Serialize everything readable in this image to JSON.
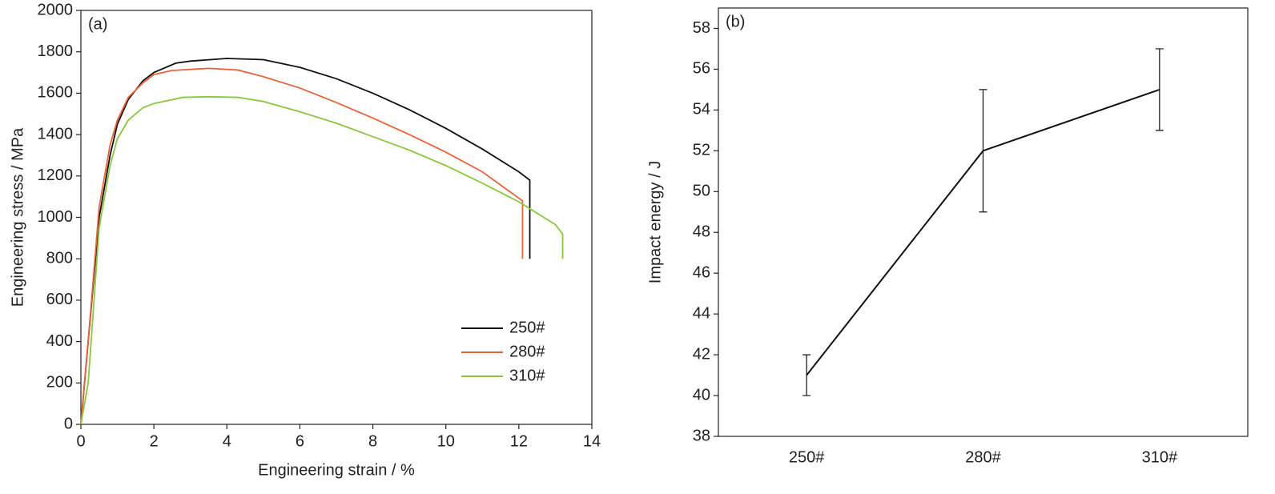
{
  "chart_data": [
    {
      "type": "line",
      "annotation": "(a)",
      "x_label": "Engineering strain / %",
      "y_label": "Engineering stress / MPa",
      "xlim": [
        0,
        14
      ],
      "xticks": [
        0,
        2,
        4,
        6,
        8,
        10,
        12,
        14
      ],
      "ylim": [
        0,
        2000
      ],
      "yticks": [
        0,
        200,
        400,
        600,
        800,
        1000,
        1200,
        1400,
        1600,
        1800,
        2000
      ],
      "legend": "lower right",
      "series": [
        {
          "name": "250#",
          "color": "#111111",
          "x": [
            0,
            0.2,
            0.5,
            0.8,
            1.0,
            1.3,
            1.7,
            2.0,
            2.6,
            3,
            4,
            5,
            6,
            7,
            8,
            9,
            10,
            11,
            12,
            12.3,
            12.3
          ],
          "values": [
            0,
            400,
            1000,
            1300,
            1450,
            1570,
            1660,
            1700,
            1745,
            1755,
            1768,
            1762,
            1725,
            1670,
            1600,
            1520,
            1430,
            1330,
            1220,
            1180,
            800
          ]
        },
        {
          "name": "280#",
          "color": "#e8633a",
          "x": [
            0,
            0.2,
            0.5,
            0.8,
            1.0,
            1.3,
            1.7,
            2.0,
            2.5,
            3.5,
            4.3,
            5,
            6,
            7,
            8,
            9,
            10,
            11,
            12.1,
            12.1
          ],
          "values": [
            0,
            400,
            1050,
            1350,
            1470,
            1580,
            1650,
            1690,
            1710,
            1720,
            1712,
            1680,
            1625,
            1555,
            1480,
            1400,
            1315,
            1220,
            1080,
            800
          ]
        },
        {
          "name": "310#",
          "color": "#8cc63f",
          "x": [
            0,
            0.2,
            0.5,
            0.8,
            1.0,
            1.3,
            1.7,
            2.0,
            2.8,
            3.5,
            4.3,
            5,
            6,
            7,
            8,
            9,
            10,
            11,
            12,
            13,
            13.2,
            13.2
          ],
          "values": [
            0,
            200,
            950,
            1250,
            1380,
            1470,
            1530,
            1550,
            1580,
            1583,
            1580,
            1560,
            1510,
            1455,
            1390,
            1325,
            1250,
            1165,
            1075,
            965,
            920,
            800
          ]
        }
      ]
    },
    {
      "type": "errorbar",
      "annotation": "(b)",
      "y_label": "Impact energy / J",
      "categories": [
        "250#",
        "280#",
        "310#"
      ],
      "values": [
        41,
        52,
        55
      ],
      "errors": [
        1,
        3,
        2
      ],
      "color": "#111111",
      "ylim": [
        38,
        59
      ],
      "yticks": [
        38,
        40,
        42,
        44,
        46,
        48,
        50,
        52,
        54,
        56,
        58
      ]
    }
  ]
}
